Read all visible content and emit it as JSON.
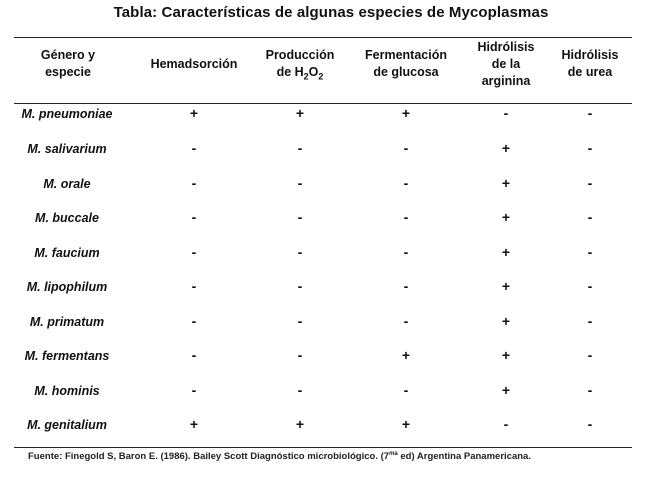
{
  "title": "Tabla: Características de algunas especies de Mycoplasmas",
  "headers": {
    "genus": [
      "Género y",
      "especie"
    ],
    "hemadsorcion": [
      "Hemadsorción"
    ],
    "produccion": [
      "Producción",
      "de H",
      "2",
      "O",
      "2"
    ],
    "fermentacion": [
      "Fermentación",
      "de glucosa"
    ],
    "arginina": [
      "Hidrólisis",
      "de la",
      "arginina"
    ],
    "urea": [
      "Hidrólisis",
      "de urea"
    ]
  },
  "rows": [
    {
      "species": "M. pneumoniae",
      "values": [
        "+",
        "+",
        "+",
        "-",
        "-"
      ]
    },
    {
      "species": "M. salivarium",
      "values": [
        "-",
        "-",
        "-",
        "+",
        "-"
      ]
    },
    {
      "species": "M. orale",
      "values": [
        "-",
        "-",
        "-",
        "+",
        "-"
      ]
    },
    {
      "species": "M. buccale",
      "values": [
        "-",
        "-",
        "-",
        "+",
        "-"
      ]
    },
    {
      "species": "M. faucium",
      "values": [
        "-",
        "-",
        "-",
        "+",
        "-"
      ]
    },
    {
      "species": "M. lipophilum",
      "values": [
        "-",
        "-",
        "-",
        "+",
        "-"
      ]
    },
    {
      "species": "M. primatum",
      "values": [
        "-",
        "-",
        "-",
        "+",
        "-"
      ]
    },
    {
      "species": "M. fermentans",
      "values": [
        "-",
        "-",
        "+",
        "+",
        "-"
      ]
    },
    {
      "species": "M. hominis",
      "values": [
        "-",
        "-",
        "-",
        "+",
        "-"
      ]
    },
    {
      "species": "M. genitalium",
      "values": [
        "+",
        "+",
        "+",
        "-",
        "-"
      ]
    }
  ],
  "footnote": {
    "main": "Fuente: Finegold S, Baron E.  (1986). Bailey Scott Diagnóstico microbiológico. (7",
    "sup": "ma",
    "tail": " ed)  Argentina Panamericana."
  }
}
